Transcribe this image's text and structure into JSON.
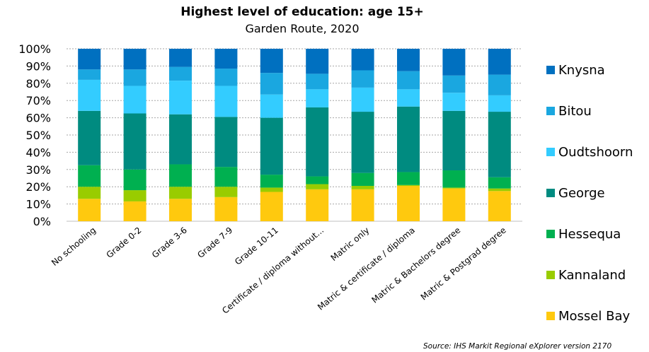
{
  "chart_data": {
    "type": "bar",
    "stacked": true,
    "percent": true,
    "title": "Highest level of education: age 15+",
    "subtitle": "Garden Route, 2020",
    "categories": [
      "No schooling",
      "Grade 0-2",
      "Grade 3-6",
      "Grade 7-9",
      "Grade 10-11",
      "Certificate / diploma without...",
      "Matric only",
      "Matric & certificate / diploma",
      "Matric & Bachelors degree",
      "Matric & Postgrad degree"
    ],
    "ylim": [
      0,
      100
    ],
    "y_ticks": [
      "0%",
      "10%",
      "20%",
      "30%",
      "40%",
      "50%",
      "60%",
      "70%",
      "80%",
      "90%",
      "100%"
    ],
    "grid": true,
    "legend_position": "right",
    "series": [
      {
        "name": "Mossel Bay",
        "color": "#FFC90E",
        "values": [
          13,
          11.5,
          13,
          14,
          17,
          18.5,
          18.5,
          20.5,
          19,
          17.5
        ]
      },
      {
        "name": "Kannaland",
        "color": "#99CC00",
        "values": [
          7,
          6.5,
          7,
          6,
          2.5,
          3,
          2,
          0.5,
          0.5,
          1.5
        ]
      },
      {
        "name": "Hessequa",
        "color": "#00B050",
        "values": [
          12.5,
          12,
          13,
          11.5,
          7.5,
          4.5,
          7.5,
          7.5,
          10,
          6.5
        ]
      },
      {
        "name": "George",
        "color": "#008B80",
        "values": [
          31.5,
          32.5,
          29,
          29,
          33,
          40,
          35.5,
          38,
          34.5,
          38
        ]
      },
      {
        "name": "Oudtshoorn",
        "color": "#33CCFF",
        "values": [
          18,
          16,
          19.5,
          18,
          13.5,
          10.5,
          14,
          10,
          10.5,
          9.5
        ]
      },
      {
        "name": "Bitou",
        "color": "#1AA7E0",
        "values": [
          6,
          9.5,
          8,
          10,
          12.5,
          9,
          10,
          10.5,
          10,
          12
        ]
      },
      {
        "name": "Knysna",
        "color": "#0070C0",
        "values": [
          12,
          12,
          10.5,
          11.5,
          14,
          14.5,
          12.5,
          13,
          15.5,
          15
        ]
      }
    ],
    "source": "Source: IHS Markit Regional eXplorer version 2170"
  }
}
